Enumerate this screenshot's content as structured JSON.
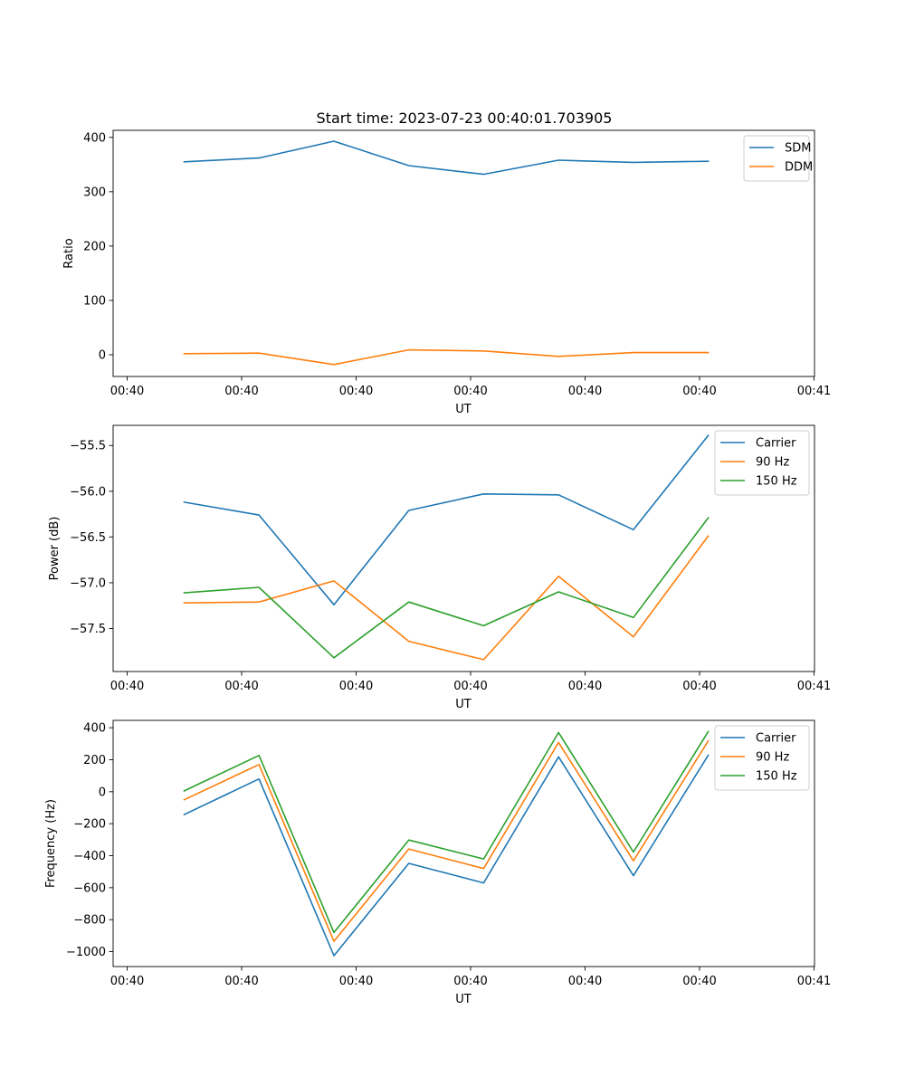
{
  "figure_title": "Start time: 2023-07-23 00:40:01.703905",
  "colors": {
    "blue": "#1f77b4",
    "orange": "#ff7f0e",
    "green": "#2ca02c"
  },
  "chart_data": [
    {
      "type": "line",
      "title": "Start time: 2023-07-23 00:40:01.703905",
      "xlabel": "UT",
      "ylabel": "Ratio",
      "x_tick_labels": [
        "00:40",
        "00:40",
        "00:40",
        "00:40",
        "00:40",
        "00:40",
        "00:40",
        "00:41"
      ],
      "ylim": [
        -40,
        413
      ],
      "yticks": [
        0,
        100,
        200,
        300,
        400
      ],
      "y_tick_labels": [
        "0",
        "100",
        "200",
        "300",
        "400"
      ],
      "legend_position": "top-right",
      "series": [
        {
          "name": "SDM",
          "color": "#1f77b4",
          "values": [
            355,
            362,
            393,
            348,
            332,
            358,
            354,
            356
          ]
        },
        {
          "name": "DDM",
          "color": "#ff7f0e",
          "values": [
            2,
            3,
            -18,
            9,
            7,
            -3,
            4,
            4
          ]
        }
      ]
    },
    {
      "type": "line",
      "title": "",
      "xlabel": "UT",
      "ylabel": "Power (dB)",
      "x_tick_labels": [
        "00:40",
        "00:40",
        "00:40",
        "00:40",
        "00:40",
        "00:40",
        "00:40",
        "00:41"
      ],
      "ylim": [
        -57.97,
        -55.28
      ],
      "yticks": [
        -57.5,
        -57.0,
        -56.5,
        -56.0,
        -55.5
      ],
      "y_tick_labels": [
        "−57.5",
        "−57.0",
        "−56.5",
        "−56.0",
        "−55.5"
      ],
      "legend_position": "top-right",
      "series": [
        {
          "name": "Carrier",
          "color": "#1f77b4",
          "values": [
            -56.12,
            -56.26,
            -57.24,
            -56.21,
            -56.03,
            -56.04,
            -56.42,
            -55.39
          ]
        },
        {
          "name": "90 Hz",
          "color": "#ff7f0e",
          "values": [
            -57.22,
            -57.21,
            -56.98,
            -57.64,
            -57.84,
            -56.93,
            -57.59,
            -56.49
          ]
        },
        {
          "name": "150 Hz",
          "color": "#2ca02c",
          "values": [
            -57.11,
            -57.05,
            -57.82,
            -57.21,
            -57.47,
            -57.1,
            -57.38,
            -56.29
          ]
        }
      ]
    },
    {
      "type": "line",
      "title": "",
      "xlabel": "UT",
      "ylabel": "Frequency (Hz)",
      "x_tick_labels": [
        "00:40",
        "00:40",
        "00:40",
        "00:40",
        "00:40",
        "00:40",
        "00:40",
        "00:41"
      ],
      "ylim": [
        -1093,
        446
      ],
      "yticks": [
        -1000,
        -800,
        -600,
        -400,
        -200,
        0,
        200,
        400
      ],
      "y_tick_labels": [
        "−1000",
        "−800",
        "−600",
        "−400",
        "−200",
        "0",
        "200",
        "400"
      ],
      "legend_position": "top-right",
      "series": [
        {
          "name": "Carrier",
          "color": "#1f77b4",
          "values": [
            -143,
            80,
            -1025,
            -448,
            -570,
            218,
            -525,
            228
          ]
        },
        {
          "name": "90 Hz",
          "color": "#ff7f0e",
          "values": [
            -50,
            170,
            -935,
            -358,
            -480,
            308,
            -432,
            318
          ]
        },
        {
          "name": "150 Hz",
          "color": "#2ca02c",
          "values": [
            5,
            227,
            -880,
            -302,
            -420,
            370,
            -377,
            376
          ]
        }
      ]
    }
  ]
}
